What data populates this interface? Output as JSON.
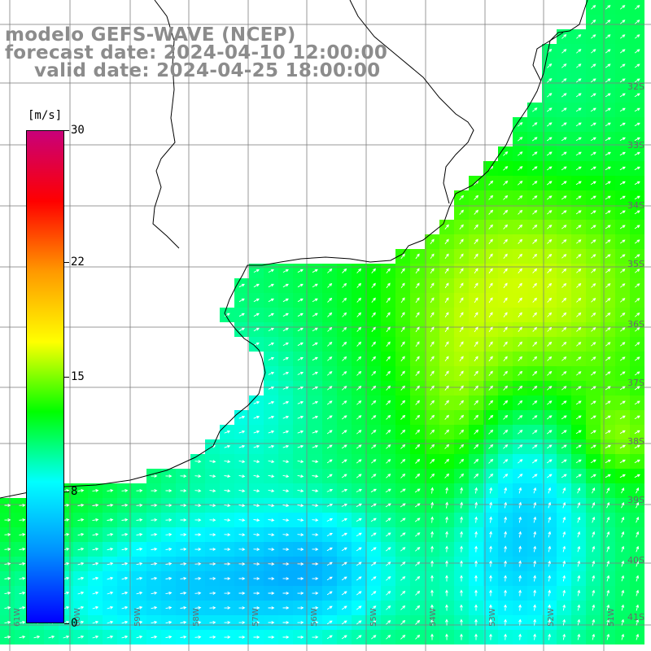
{
  "title": {
    "line1": "modelo GEFS-WAVE (NCEP)",
    "line2": "forecast date: 2024-04-10 12:00:00",
    "line3": "valid date: 2024-04-25 18:00:00"
  },
  "colorbar": {
    "unit": "[m/s]",
    "min": 0,
    "max": 30,
    "ticks": [
      "30",
      "22",
      "15",
      "8",
      "0"
    ],
    "tick_values": [
      30,
      22,
      15,
      8,
      0
    ],
    "colors": [
      "#0000ff",
      "#0090ff",
      "#00ffff",
      "#00ff00",
      "#ffff00",
      "#ff9900",
      "#ff0000",
      "#c8007a"
    ]
  },
  "lat_labels": [
    "32S",
    "33S",
    "34S",
    "35S",
    "36S",
    "37S",
    "38S",
    "39S",
    "40S",
    "41S"
  ],
  "lon_labels": [
    "61W",
    "60W",
    "59W",
    "58W",
    "57W",
    "56W",
    "55W",
    "54W",
    "53W",
    "52W",
    "51W"
  ],
  "colors": {
    "land": "#ffffff",
    "grid": "#808080",
    "coast": "#000000",
    "arrows": "#ffffff",
    "title": "#8c8c8c"
  },
  "legend": {
    "position": "left"
  }
}
